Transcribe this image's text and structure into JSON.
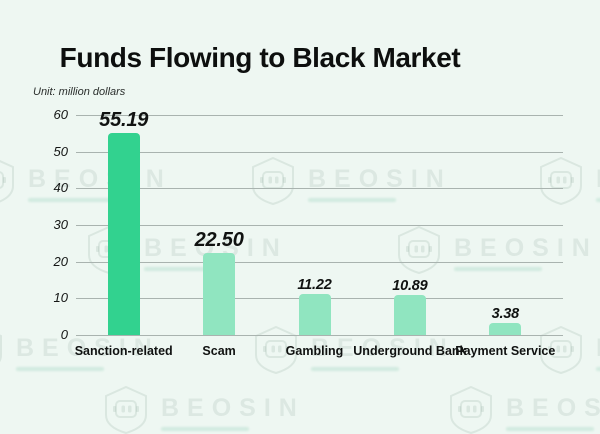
{
  "page": {
    "background_color": "#eef7f2"
  },
  "chart_data": {
    "type": "bar",
    "title": "Funds Flowing to Black Market",
    "unit_label": "Unit: million dollars",
    "categories": [
      "Sanction-related",
      "Scam",
      "Gambling",
      "Underground Bank",
      "Payment Service"
    ],
    "values": [
      55.19,
      22.5,
      11.22,
      10.89,
      3.38
    ],
    "value_labels": [
      "55.19",
      "22.50",
      "11.22",
      "10.89",
      "3.38"
    ],
    "label_emphasis": [
      true,
      true,
      false,
      false,
      false
    ],
    "yticks": [
      0,
      10,
      20,
      30,
      40,
      50,
      60
    ],
    "ylim": [
      0,
      60
    ],
    "grid": true,
    "legend": "none",
    "highlight_index": 0,
    "colors": {
      "bar_highlight": "#32d28f",
      "bar_normal": "#90e5c0",
      "gridline": "#a9b3af",
      "text": "#101211"
    }
  },
  "watermark": {
    "text": "BEOSIN",
    "logo": "beosin-shield-logo"
  }
}
